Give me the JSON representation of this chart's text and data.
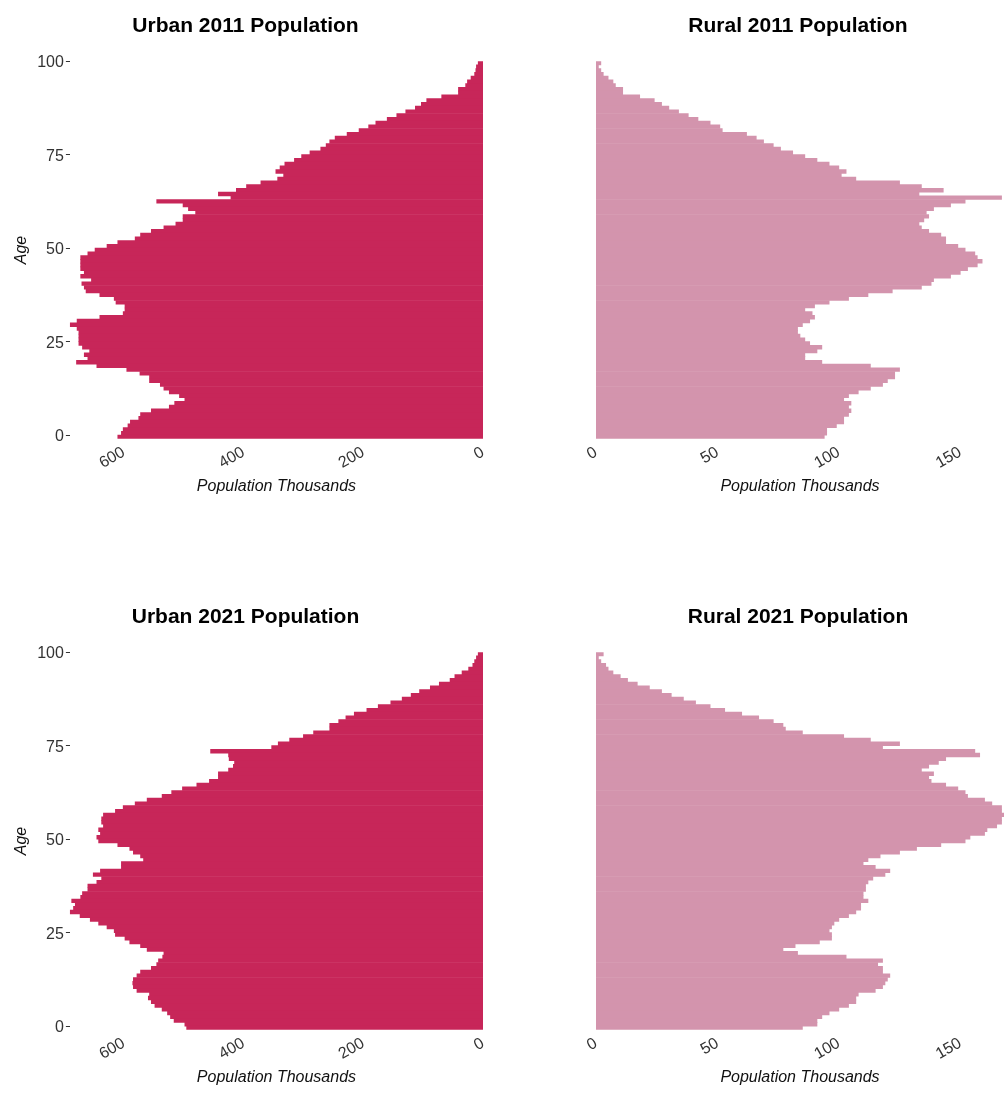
{
  "chart_data": [
    {
      "type": "bar",
      "orientation": "horizontal",
      "title": "Urban 2011 Population",
      "xlabel": "Population Thousands",
      "ylabel": "Age",
      "color": "#c72659",
      "categories": [
        "100",
        null,
        null,
        null,
        null,
        null,
        null,
        null,
        null,
        null,
        null,
        null,
        null,
        null,
        null,
        null,
        null,
        null,
        null,
        null,
        null,
        null,
        null,
        null,
        null,
        "75",
        null,
        null,
        null,
        null,
        null,
        null,
        null,
        null,
        null,
        null,
        null,
        null,
        null,
        null,
        null,
        null,
        null,
        null,
        null,
        null,
        null,
        null,
        null,
        null,
        "50",
        null,
        null,
        null,
        null,
        null,
        null,
        null,
        null,
        null,
        null,
        null,
        null,
        null,
        null,
        null,
        null,
        null,
        null,
        null,
        null,
        null,
        null,
        null,
        null,
        "25",
        null,
        null,
        null,
        null,
        null,
        null,
        null,
        null,
        null,
        null,
        null,
        null,
        null,
        null,
        null,
        null,
        null,
        null,
        null,
        null,
        null,
        null,
        null,
        null,
        "0"
      ],
      "values": [
        8,
        11,
        12,
        14,
        20,
        26,
        29,
        41,
        41,
        69,
        94,
        103,
        113,
        129,
        144,
        160,
        179,
        191,
        207,
        227,
        247,
        256,
        262,
        271,
        289,
        303,
        315,
        331,
        339,
        346,
        333,
        343,
        371,
        395,
        412,
        442,
        421,
        545,
        501,
        492,
        480,
        501,
        501,
        513,
        533,
        554,
        572,
        581,
        610,
        628,
        648,
        660,
        672,
        672,
        672,
        672,
        666,
        672,
        654,
        670,
        666,
        663,
        640,
        616,
        613,
        598,
        598,
        601,
        640,
        678,
        690,
        678,
        675,
        675,
        675,
        675,
        669,
        657,
        666,
        660,
        679,
        645,
        595,
        573,
        557,
        557,
        539,
        533,
        524,
        507,
        498,
        515,
        524,
        554,
        572,
        575,
        589,
        593,
        601,
        604,
        610
      ],
      "xlim": [
        690,
        0
      ],
      "xticks": [
        600,
        400,
        200,
        0
      ]
    },
    {
      "type": "bar",
      "orientation": "horizontal",
      "title": "Rural 2011 Population",
      "xlabel": "Population Thousands",
      "color": "#d394ad",
      "tick_labels": "x",
      "categories": [
        "100",
        null,
        null,
        null,
        null,
        null,
        null,
        null,
        null,
        null,
        null,
        null,
        null,
        null,
        null,
        null,
        null,
        null,
        null,
        null,
        null,
        null,
        null,
        null,
        null,
        "75",
        null,
        null,
        null,
        null,
        null,
        null,
        null,
        null,
        null,
        null,
        null,
        null,
        null,
        null,
        null,
        null,
        null,
        null,
        null,
        null,
        null,
        null,
        null,
        null,
        "50",
        null,
        null,
        null,
        null,
        null,
        null,
        null,
        null,
        null,
        null,
        null,
        null,
        null,
        null,
        null,
        null,
        null,
        null,
        null,
        null,
        null,
        null,
        null,
        null,
        "25",
        null,
        null,
        null,
        null,
        null,
        null,
        null,
        null,
        null,
        null,
        null,
        null,
        null,
        null,
        null,
        null,
        null,
        null,
        null,
        null,
        null,
        null,
        null,
        null,
        "0"
      ],
      "values": [
        2,
        1,
        2,
        3,
        5,
        7,
        8,
        11,
        11,
        18,
        24,
        27,
        30,
        34,
        38,
        42,
        47,
        51,
        52,
        62,
        66,
        69,
        73,
        76,
        81,
        86,
        91,
        96,
        100,
        103,
        101,
        107,
        125,
        134,
        143,
        133,
        167,
        152,
        146,
        139,
        136,
        137,
        135,
        133,
        134,
        137,
        142,
        144,
        144,
        149,
        152,
        156,
        157,
        159,
        157,
        153,
        150,
        146,
        139,
        138,
        134,
        122,
        112,
        104,
        96,
        90,
        86,
        89,
        90,
        88,
        85,
        83,
        83,
        84,
        86,
        88,
        93,
        91,
        86,
        86,
        93,
        113,
        125,
        123,
        123,
        120,
        118,
        113,
        108,
        104,
        102,
        105,
        104,
        105,
        104,
        102,
        102,
        99,
        95,
        95,
        94
      ],
      "xlim": [
        0,
        168
      ],
      "xticks": [
        0,
        50,
        100,
        150
      ]
    },
    {
      "type": "bar",
      "orientation": "horizontal",
      "title": "Urban 2021 Population",
      "xlabel": "Population Thousands",
      "ylabel": "Age",
      "color": "#c72659",
      "categories": [
        "100",
        null,
        null,
        null,
        null,
        null,
        null,
        null,
        null,
        null,
        null,
        null,
        null,
        null,
        null,
        null,
        null,
        null,
        null,
        null,
        null,
        null,
        null,
        null,
        null,
        "75",
        null,
        null,
        null,
        null,
        null,
        null,
        null,
        null,
        null,
        null,
        null,
        null,
        null,
        null,
        null,
        null,
        null,
        null,
        null,
        null,
        null,
        null,
        null,
        null,
        "50",
        null,
        null,
        null,
        null,
        null,
        null,
        null,
        null,
        null,
        null,
        null,
        null,
        null,
        null,
        null,
        null,
        null,
        null,
        null,
        null,
        null,
        null,
        null,
        null,
        "25",
        null,
        null,
        null,
        null,
        null,
        null,
        null,
        null,
        null,
        null,
        null,
        null,
        null,
        null,
        null,
        null,
        null,
        null,
        null,
        null,
        null,
        null,
        null,
        null,
        "0"
      ],
      "values": [
        8,
        11,
        14,
        17,
        24,
        35,
        47,
        55,
        73,
        88,
        106,
        120,
        135,
        154,
        175,
        194,
        215,
        229,
        241,
        256,
        256,
        283,
        300,
        323,
        342,
        353,
        455,
        425,
        424,
        415,
        417,
        425,
        442,
        442,
        457,
        478,
        502,
        520,
        536,
        561,
        581,
        601,
        614,
        634,
        637,
        637,
        634,
        642,
        639,
        645,
        642,
        610,
        590,
        584,
        572,
        567,
        604,
        604,
        639,
        651,
        637,
        645,
        660,
        660,
        669,
        672,
        687,
        681,
        684,
        690,
        673,
        656,
        642,
        628,
        616,
        614,
        598,
        590,
        572,
        561,
        533,
        535,
        542,
        545,
        554,
        572,
        578,
        584,
        585,
        584,
        578,
        557,
        559,
        554,
        548,
        536,
        527,
        522,
        516,
        498,
        495
      ],
      "xlim": [
        690,
        0
      ],
      "xticks": [
        600,
        400,
        200,
        0
      ]
    },
    {
      "type": "bar",
      "orientation": "horizontal",
      "title": "Rural 2021 Population",
      "xlabel": "Population Thousands",
      "color": "#d394ad",
      "tick_labels": "x",
      "categories": [
        "100",
        null,
        null,
        null,
        null,
        null,
        null,
        null,
        null,
        null,
        null,
        null,
        null,
        null,
        null,
        null,
        null,
        null,
        null,
        null,
        null,
        null,
        null,
        null,
        null,
        "75",
        null,
        null,
        null,
        null,
        null,
        null,
        null,
        null,
        null,
        null,
        null,
        null,
        null,
        null,
        null,
        null,
        null,
        null,
        null,
        null,
        null,
        null,
        null,
        null,
        "50",
        null,
        null,
        null,
        null,
        null,
        null,
        null,
        null,
        null,
        null,
        null,
        null,
        null,
        null,
        null,
        null,
        null,
        null,
        null,
        null,
        null,
        null,
        null,
        null,
        "25",
        null,
        null,
        null,
        null,
        null,
        null,
        null,
        null,
        null,
        null,
        null,
        null,
        null,
        null,
        null,
        null,
        null,
        null,
        null,
        null,
        null,
        null,
        null,
        null,
        "0"
      ],
      "values": [
        3,
        1,
        2,
        4,
        5,
        7,
        10,
        13,
        17,
        22,
        27,
        31,
        36,
        41,
        47,
        53,
        60,
        67,
        73,
        77,
        78,
        85,
        102,
        113,
        125,
        118,
        156,
        158,
        144,
        141,
        137,
        134,
        139,
        137,
        138,
        144,
        149,
        152,
        153,
        160,
        163,
        167,
        167,
        168,
        167,
        167,
        165,
        161,
        160,
        154,
        152,
        142,
        132,
        125,
        117,
        112,
        110,
        115,
        121,
        119,
        114,
        112,
        111,
        111,
        110,
        110,
        112,
        109,
        109,
        107,
        104,
        100,
        98,
        97,
        96,
        97,
        97,
        92,
        82,
        77,
        83,
        103,
        118,
        116,
        118,
        118,
        121,
        120,
        119,
        118,
        115,
        108,
        107,
        107,
        104,
        100,
        96,
        93,
        91,
        91,
        85
      ],
      "xlim": [
        0,
        168
      ],
      "xticks": [
        0,
        50,
        100,
        150
      ]
    }
  ]
}
